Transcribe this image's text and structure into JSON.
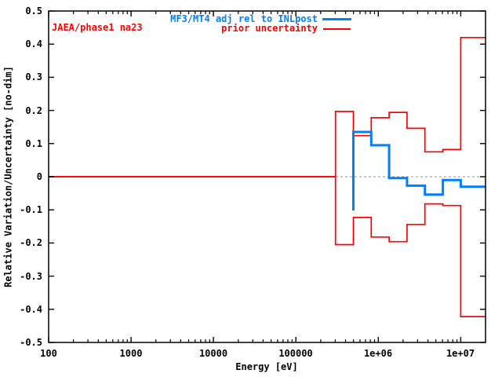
{
  "annotation": "JAEA/phase1 na23",
  "legend": [
    {
      "label": "MF3/MT4 adj rel to INLpost",
      "color": "#0080ff"
    },
    {
      "label": "prior uncertainty",
      "color": "#ff0000"
    }
  ],
  "colors": {
    "blue": "#0080ff",
    "red": "#ff0000",
    "axis": "#000000",
    "zero_line": "#909090",
    "background": "#ffffff"
  },
  "chart_data": {
    "type": "line",
    "subtype": "steps",
    "title": "",
    "xlabel": "Energy [eV]",
    "ylabel": "Relative Variation/Uncertainty [no-dim]",
    "x_scale": "log",
    "xlim": [
      100,
      20000000
    ],
    "ylim": [
      -0.5,
      0.5
    ],
    "grid": false,
    "zero_line_dashed": true,
    "legend_position": "top-right-inside",
    "x_tick_values": [
      100,
      1000,
      10000,
      100000,
      1000000,
      10000000
    ],
    "x_tick_labels": [
      "100",
      "1000",
      "10000",
      "100000",
      "1e+06",
      "1e+07"
    ],
    "y_tick_values": [
      0.5,
      0.4,
      0.3,
      0.2,
      0.1,
      0,
      -0.1,
      -0.2,
      -0.3,
      -0.4,
      -0.5
    ],
    "y_tick_labels": [
      "0.5",
      "0.4",
      "0.3",
      "0.2",
      "0.1",
      "0",
      "-0.1",
      "-0.2",
      "-0.3",
      "-0.4",
      "-0.5"
    ],
    "group_boundaries_eV": [
      302000,
      497900,
      820800,
      1353000,
      2231000,
      3679000,
      6065000,
      10000000,
      20000000
    ],
    "series": [
      {
        "name": "prior uncertainty (+)",
        "color": "#ff0000",
        "width": 1.7,
        "points": [
          [
            100,
            0
          ],
          [
            302000,
            0
          ],
          [
            302000,
            0.197
          ],
          [
            497900,
            0.197
          ],
          [
            497900,
            0.124
          ],
          [
            820800,
            0.124
          ],
          [
            820800,
            0.178
          ],
          [
            1353000,
            0.178
          ],
          [
            1353000,
            0.194
          ],
          [
            2231000,
            0.194
          ],
          [
            2231000,
            0.146
          ],
          [
            3679000,
            0.146
          ],
          [
            3679000,
            0.075
          ],
          [
            6065000,
            0.075
          ],
          [
            6065000,
            0.082
          ],
          [
            10000000,
            0.082
          ],
          [
            10000000,
            0.42
          ],
          [
            20000000,
            0.42
          ]
        ]
      },
      {
        "name": "prior uncertainty (-)",
        "color": "#ff0000",
        "width": 1.7,
        "points": [
          [
            100,
            0
          ],
          [
            302000,
            0
          ],
          [
            302000,
            -0.205
          ],
          [
            497900,
            -0.205
          ],
          [
            497900,
            -0.123
          ],
          [
            820800,
            -0.123
          ],
          [
            820800,
            -0.182
          ],
          [
            1353000,
            -0.182
          ],
          [
            1353000,
            -0.196
          ],
          [
            2231000,
            -0.196
          ],
          [
            2231000,
            -0.144
          ],
          [
            3679000,
            -0.144
          ],
          [
            3679000,
            -0.082
          ],
          [
            6065000,
            -0.082
          ],
          [
            6065000,
            -0.087
          ],
          [
            10000000,
            -0.087
          ],
          [
            10000000,
            -0.422
          ],
          [
            20000000,
            -0.422
          ]
        ]
      },
      {
        "name": "MF3/MT4 adj rel to INLpost",
        "color": "#0080ff",
        "width": 3,
        "points": [
          [
            497900,
            -0.102
          ],
          [
            497900,
            0.135
          ],
          [
            820800,
            0.135
          ],
          [
            820800,
            0.095
          ],
          [
            1353000,
            0.095
          ],
          [
            1353000,
            -0.004
          ],
          [
            2231000,
            -0.004
          ],
          [
            2231000,
            -0.027
          ],
          [
            3679000,
            -0.027
          ],
          [
            3679000,
            -0.054
          ],
          [
            6065000,
            -0.054
          ],
          [
            6065000,
            -0.01
          ],
          [
            10000000,
            -0.01
          ],
          [
            10000000,
            -0.03
          ],
          [
            20000000,
            -0.03
          ]
        ]
      }
    ]
  }
}
